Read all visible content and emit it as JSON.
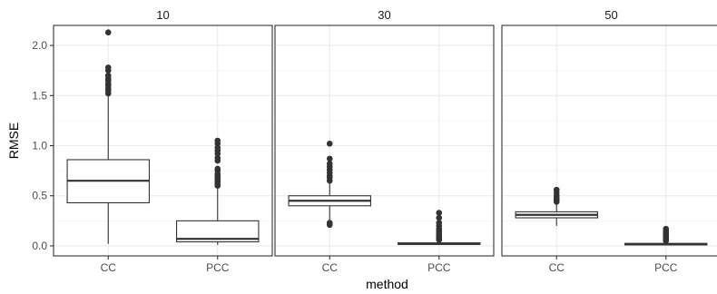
{
  "chart_data": {
    "type": "boxplot",
    "facet_variable": "",
    "facets": [
      "10",
      "30",
      "50"
    ],
    "categories": [
      "CC",
      "PCC"
    ],
    "xlabel": "method",
    "ylabel": "RMSE",
    "ylim": [
      -0.1,
      2.2
    ],
    "yticks": [
      0.0,
      0.5,
      1.0,
      1.5,
      2.0
    ],
    "ytick_labels": [
      "0.0",
      "0.5",
      "1.0",
      "1.5",
      "2.0"
    ],
    "grid": true,
    "panels": [
      {
        "facet": "10",
        "boxes": [
          {
            "category": "CC",
            "min": 0.02,
            "q1": 0.43,
            "median": 0.65,
            "q3": 0.86,
            "max": 1.49,
            "outliers": [
              1.52,
              1.55,
              1.57,
              1.6,
              1.62,
              1.65,
              1.67,
              1.7,
              1.75,
              1.78,
              2.13
            ]
          },
          {
            "category": "PCC",
            "min": 0.01,
            "q1": 0.04,
            "median": 0.07,
            "q3": 0.25,
            "max": 0.57,
            "outliers": [
              0.6,
              0.62,
              0.64,
              0.66,
              0.68,
              0.7,
              0.72,
              0.75,
              0.77,
              0.85,
              0.88,
              0.92,
              0.95,
              0.98,
              1.02,
              1.05
            ]
          }
        ]
      },
      {
        "facet": "30",
        "boxes": [
          {
            "category": "CC",
            "min": 0.26,
            "q1": 0.4,
            "median": 0.45,
            "q3": 0.5,
            "max": 0.62,
            "outliers": [
              0.21,
              0.23,
              0.65,
              0.68,
              0.7,
              0.73,
              0.76,
              0.79,
              0.82,
              0.87,
              1.02
            ]
          },
          {
            "category": "PCC",
            "min": 0.01,
            "q1": 0.015,
            "median": 0.02,
            "q3": 0.03,
            "max": 0.05,
            "outliers": [
              0.06,
              0.07,
              0.08,
              0.09,
              0.1,
              0.11,
              0.13,
              0.15,
              0.17,
              0.2,
              0.23,
              0.28,
              0.33
            ]
          }
        ]
      },
      {
        "facet": "50",
        "boxes": [
          {
            "category": "CC",
            "min": 0.2,
            "q1": 0.28,
            "median": 0.31,
            "q3": 0.34,
            "max": 0.42,
            "outliers": [
              0.44,
              0.46,
              0.48,
              0.5,
              0.53,
              0.56
            ]
          },
          {
            "category": "PCC",
            "min": 0.005,
            "q1": 0.01,
            "median": 0.015,
            "q3": 0.025,
            "max": 0.04,
            "outliers": [
              0.05,
              0.06,
              0.07,
              0.08,
              0.09,
              0.1,
              0.11,
              0.12,
              0.13,
              0.15,
              0.17
            ]
          }
        ]
      }
    ]
  }
}
